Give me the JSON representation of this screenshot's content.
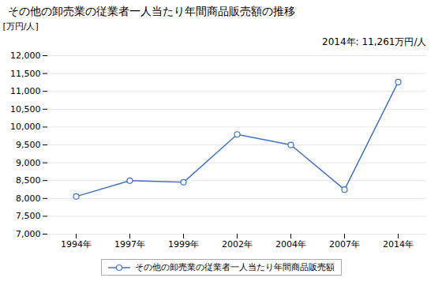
{
  "chart_data": {
    "type": "line",
    "title": "その他の卸売業の従業者一人当たり年間商品販売額の推移",
    "y_label": "[万円/人]",
    "annotation": "2014年: 11,261万円/人",
    "categories": [
      "1994年",
      "1997年",
      "1999年",
      "2002年",
      "2004年",
      "2007年",
      "2014年"
    ],
    "series": [
      {
        "name": "その他の卸売業の従業者一人当たり年間商品販売額",
        "color": "#4472C4",
        "marker": "circle",
        "values": [
          8054,
          8497,
          8452,
          9793,
          9499,
          8246,
          11261
        ]
      }
    ],
    "ylim": [
      7000,
      12000
    ],
    "yticks": [
      {
        "value": 7000,
        "label": "7,000"
      },
      {
        "value": 7500,
        "label": "7,500"
      },
      {
        "value": 8000,
        "label": "8,000"
      },
      {
        "value": 8500,
        "label": "8,500"
      },
      {
        "value": 9000,
        "label": "9,000"
      },
      {
        "value": 9500,
        "label": "9,500"
      },
      {
        "value": 10000,
        "label": "10,000"
      },
      {
        "value": 10500,
        "label": "10,500"
      },
      {
        "value": 11000,
        "label": "11,000"
      },
      {
        "value": 11500,
        "label": "11,500"
      },
      {
        "value": 12000,
        "label": "12,000"
      }
    ],
    "grid": true,
    "legend": "bottom"
  }
}
